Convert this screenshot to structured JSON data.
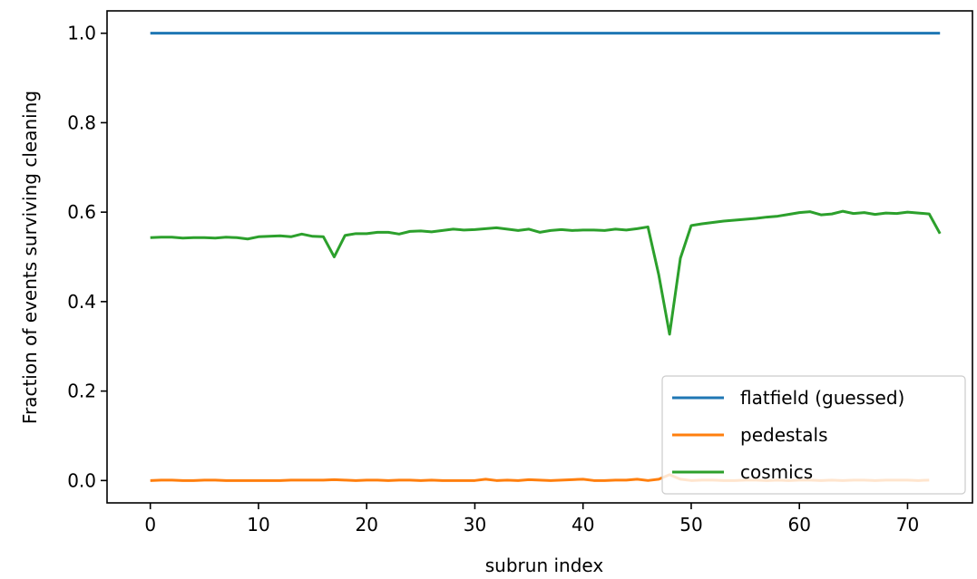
{
  "chart_data": {
    "type": "line",
    "title": "",
    "xlabel": "subrun index",
    "ylabel": "Fraction of events surviving cleaning",
    "xlim": [
      -4,
      76
    ],
    "ylim": [
      -0.05,
      1.05
    ],
    "xticks": [
      0,
      10,
      20,
      30,
      40,
      50,
      60,
      70
    ],
    "yticks": [
      0.0,
      0.2,
      0.4,
      0.6,
      0.8,
      1.0
    ],
    "xtick_labels": [
      "0",
      "10",
      "20",
      "30",
      "40",
      "50",
      "60",
      "70"
    ],
    "ytick_labels": [
      "0.0",
      "0.2",
      "0.4",
      "0.6",
      "0.8",
      "1.0"
    ],
    "grid": false,
    "legend_position": "lower-right",
    "series": [
      {
        "name": "flatfield (guessed)",
        "color": "#1f77b4",
        "x": [
          0,
          73
        ],
        "y": [
          1.0,
          1.0
        ]
      },
      {
        "name": "pedestals",
        "color": "#ff7f0e",
        "x": [
          0,
          1,
          2,
          3,
          4,
          5,
          6,
          7,
          8,
          9,
          10,
          11,
          12,
          13,
          14,
          15,
          16,
          17,
          18,
          19,
          20,
          21,
          22,
          23,
          24,
          25,
          26,
          27,
          28,
          29,
          30,
          31,
          32,
          33,
          34,
          35,
          36,
          37,
          38,
          39,
          40,
          41,
          42,
          43,
          44,
          45,
          46,
          47,
          48,
          49,
          50,
          51,
          52,
          53,
          54,
          55,
          56,
          57,
          58,
          59,
          60,
          61,
          62,
          63,
          64,
          65,
          66,
          67,
          68,
          69,
          70,
          71,
          72
        ],
        "y": [
          0.0,
          0.001,
          0.001,
          0.0,
          0.0,
          0.001,
          0.001,
          0.0,
          0.0,
          0.0,
          0.0,
          0.0,
          0.0,
          0.001,
          0.001,
          0.001,
          0.001,
          0.002,
          0.001,
          0.0,
          0.001,
          0.001,
          0.0,
          0.001,
          0.001,
          0.0,
          0.001,
          0.0,
          0.0,
          0.0,
          0.0,
          0.003,
          0.0,
          0.001,
          0.0,
          0.002,
          0.001,
          0.0,
          0.001,
          0.002,
          0.003,
          0.0,
          0.0,
          0.001,
          0.001,
          0.003,
          0.0,
          0.003,
          0.013,
          0.003,
          0.0,
          0.001,
          0.001,
          0.0,
          0.0,
          0.001,
          0.001,
          0.0,
          0.001,
          0.0,
          0.001,
          0.001,
          0.0,
          0.001,
          0.0,
          0.001,
          0.001,
          0.0,
          0.001,
          0.001,
          0.001,
          0.0,
          0.001
        ]
      },
      {
        "name": "cosmics",
        "color": "#2ca02c",
        "x": [
          0,
          1,
          2,
          3,
          4,
          5,
          6,
          7,
          8,
          9,
          10,
          11,
          12,
          13,
          14,
          15,
          16,
          17,
          18,
          19,
          20,
          21,
          22,
          23,
          24,
          25,
          26,
          27,
          28,
          29,
          30,
          31,
          32,
          33,
          34,
          35,
          36,
          37,
          38,
          39,
          40,
          41,
          42,
          43,
          44,
          45,
          46,
          47,
          48,
          49,
          50,
          51,
          52,
          53,
          54,
          55,
          56,
          57,
          58,
          59,
          60,
          61,
          62,
          63,
          64,
          65,
          66,
          67,
          68,
          69,
          70,
          71,
          72,
          73
        ],
        "y": [
          0.543,
          0.544,
          0.544,
          0.542,
          0.543,
          0.543,
          0.542,
          0.544,
          0.543,
          0.54,
          0.545,
          0.546,
          0.547,
          0.545,
          0.551,
          0.546,
          0.545,
          0.5,
          0.548,
          0.552,
          0.552,
          0.555,
          0.555,
          0.551,
          0.557,
          0.558,
          0.556,
          0.559,
          0.562,
          0.56,
          0.561,
          0.563,
          0.565,
          0.562,
          0.559,
          0.562,
          0.555,
          0.559,
          0.561,
          0.559,
          0.56,
          0.56,
          0.559,
          0.562,
          0.56,
          0.563,
          0.567,
          0.46,
          0.327,
          0.497,
          0.57,
          0.574,
          0.577,
          0.58,
          0.582,
          0.584,
          0.586,
          0.589,
          0.591,
          0.595,
          0.599,
          0.601,
          0.594,
          0.596,
          0.602,
          0.597,
          0.599,
          0.595,
          0.598,
          0.597,
          0.6,
          0.598,
          0.596,
          0.552
        ]
      }
    ]
  }
}
